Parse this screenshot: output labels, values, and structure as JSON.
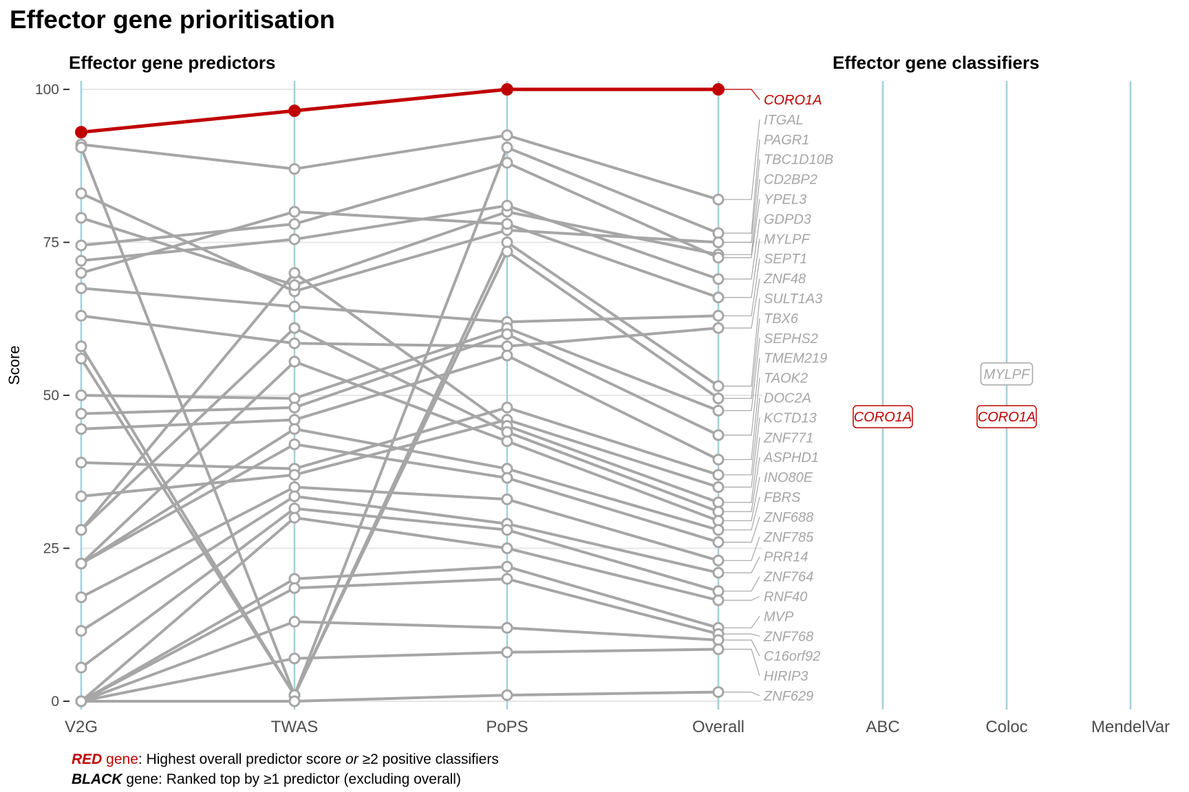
{
  "header": {
    "title": "Effector gene prioritisation",
    "predictors_title": "Effector gene predictors",
    "classifiers_title": "Effector gene classifiers"
  },
  "legend": {
    "red_word": "RED",
    "red_gene_word": " gene",
    "red_text_a": ": Highest overall predictor score ",
    "red_text_or": "or",
    "red_text_b": " ≥2 positive classifiers",
    "black_word": "BLACK",
    "black_text": " gene: Ranked top by ≥1 predictor (excluding overall)"
  },
  "colors": {
    "highlight": "#c00000",
    "lines": "#a6a6a6",
    "axis_columns": "#a0d0dc",
    "grid": "#e6e6e6"
  },
  "chart_data": {
    "type": "line",
    "ylabel": "Score",
    "ylim": [
      0,
      100
    ],
    "yticks": [
      0,
      25,
      50,
      75,
      100
    ],
    "categories": [
      "V2G",
      "TWAS",
      "PoPS",
      "Overall"
    ],
    "classifier_categories": [
      "ABC",
      "Coloc",
      "MendelVar"
    ],
    "highlight_gene": "CORO1A",
    "series": [
      {
        "name": "CORO1A",
        "values": [
          93,
          96.5,
          100,
          100
        ]
      },
      {
        "name": "ITGAL",
        "values": [
          91,
          87,
          92.5,
          82
        ]
      },
      {
        "name": "PAGR1",
        "values": [
          90.5,
          1,
          90.5,
          76.5
        ]
      },
      {
        "name": "TBC1D10B",
        "values": [
          83,
          67,
          77,
          75
        ]
      },
      {
        "name": "CD2BP2",
        "values": [
          79,
          68,
          80,
          73
        ]
      },
      {
        "name": "YPEL3",
        "values": [
          74.5,
          78,
          88,
          72.5
        ]
      },
      {
        "name": "GDPD3",
        "values": [
          72,
          75.5,
          81,
          69
        ]
      },
      {
        "name": "MYLPF",
        "values": [
          70,
          80,
          78,
          66
        ]
      },
      {
        "name": "SEPT1",
        "values": [
          67.5,
          64.5,
          62,
          63
        ]
      },
      {
        "name": "ZNF48",
        "values": [
          63,
          58.5,
          58,
          61
        ]
      },
      {
        "name": "SULT1A3",
        "values": [
          58,
          1,
          75,
          51.5
        ]
      },
      {
        "name": "TBX6",
        "values": [
          56,
          1,
          73.5,
          49.5
        ]
      },
      {
        "name": "SEPHS2",
        "values": [
          50,
          49.5,
          61,
          47.5
        ]
      },
      {
        "name": "TMEM219",
        "values": [
          47,
          48,
          60,
          43.5
        ]
      },
      {
        "name": "TAOK2",
        "values": [
          44.5,
          46,
          56.5,
          39.5
        ]
      },
      {
        "name": "DOC2A",
        "values": [
          39,
          38,
          48,
          37
        ]
      },
      {
        "name": "KCTD13",
        "values": [
          33.5,
          37,
          46,
          35
        ]
      },
      {
        "name": "ZNF771",
        "values": [
          28,
          70,
          45,
          32.5
        ]
      },
      {
        "name": "ASPHD1",
        "values": [
          28,
          61,
          44,
          31
        ]
      },
      {
        "name": "INO80E",
        "values": [
          22.5,
          55.5,
          42.5,
          29.5
        ]
      },
      {
        "name": "FBRS",
        "values": [
          22.5,
          44.5,
          38,
          28
        ]
      },
      {
        "name": "ZNF688",
        "values": [
          22.5,
          42,
          36.5,
          26
        ]
      },
      {
        "name": "ZNF785",
        "values": [
          17,
          35,
          33,
          23
        ]
      },
      {
        "name": "PRR14",
        "values": [
          11.5,
          33.5,
          29,
          21
        ]
      },
      {
        "name": "ZNF764",
        "values": [
          5.5,
          31.5,
          28,
          18
        ]
      },
      {
        "name": "RNF40",
        "values": [
          0,
          30,
          25,
          16.5
        ]
      },
      {
        "name": "MVP",
        "values": [
          0,
          20,
          22,
          12
        ]
      },
      {
        "name": "ZNF768",
        "values": [
          0,
          18.5,
          20,
          11
        ]
      },
      {
        "name": "C16orf92",
        "values": [
          0,
          13,
          12,
          10
        ]
      },
      {
        "name": "HIRIP3",
        "values": [
          0,
          7,
          8,
          8.5
        ]
      },
      {
        "name": "ZNF629",
        "values": [
          0,
          0,
          1,
          1.5
        ]
      }
    ],
    "classifier_labels": [
      {
        "column": "ABC",
        "gene": "CORO1A",
        "highlight": true,
        "score": 46.5
      },
      {
        "column": "Coloc",
        "gene": "CORO1A",
        "highlight": true,
        "score": 46.5
      },
      {
        "column": "Coloc",
        "gene": "MYLPF",
        "highlight": false,
        "score": 53.5
      }
    ],
    "grid": true,
    "legend_position": "none"
  }
}
